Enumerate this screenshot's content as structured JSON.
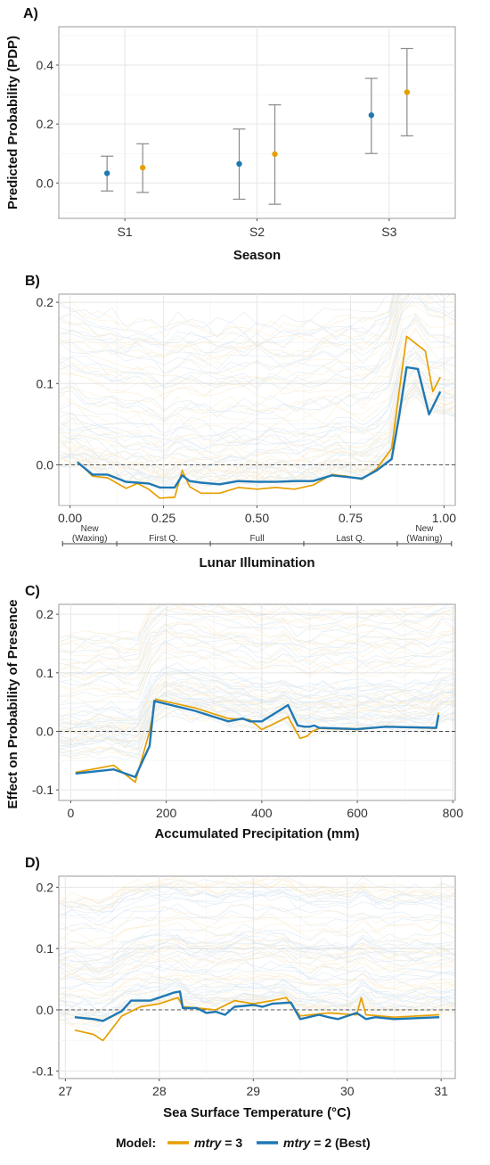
{
  "colors": {
    "model_a": "#E69F00",
    "model_b": "#1F78B4",
    "errorbar": "#8a8a8a",
    "ice_a": "#F2C572",
    "ice_b": "#8EB8D8"
  },
  "y_title_shared": "Effect on Probability of Presence",
  "legend": {
    "title": "Model:",
    "items": [
      {
        "key": "mtry3",
        "name": "mtry",
        "suffix": " = 3",
        "color": "#E69F00"
      },
      {
        "key": "mtry2",
        "name": "mtry",
        "suffix": " = 2 (Best)",
        "color": "#1F78B4"
      }
    ]
  },
  "chart_data": [
    {
      "id": "A",
      "tag": "A)",
      "type": "scatter",
      "xlabel": "Season",
      "ylabel": "Predicted Probability (PDP)",
      "categories": [
        "S1",
        "S2",
        "S3"
      ],
      "ylim": [
        -0.12,
        0.53
      ],
      "yticks": [
        0.0,
        0.2,
        0.4
      ],
      "ytick_labels": [
        "0.0",
        "0.2",
        "0.4"
      ],
      "grid": true,
      "series": [
        {
          "key": "mtry2",
          "values": [
            0.033,
            0.065,
            0.23
          ],
          "lower": [
            -0.027,
            -0.055,
            0.1
          ],
          "upper": [
            0.091,
            0.183,
            0.355
          ]
        },
        {
          "key": "mtry3",
          "values": [
            0.052,
            0.098,
            0.308
          ],
          "lower": [
            -0.032,
            -0.072,
            0.16
          ],
          "upper": [
            0.133,
            0.265,
            0.456
          ]
        }
      ]
    },
    {
      "id": "B",
      "tag": "B)",
      "type": "line",
      "xlabel": "Lunar Illumination",
      "xlim": [
        -0.03,
        1.03
      ],
      "ylim": [
        -0.05,
        0.21
      ],
      "xticks": [
        0.0,
        0.25,
        0.5,
        0.75,
        1.0
      ],
      "xtick_labels": [
        "0.00",
        "0.25",
        "0.50",
        "0.75",
        "1.00"
      ],
      "yticks": [
        0.0,
        0.1,
        0.2
      ],
      "ytick_labels": [
        "0.0",
        "0.1",
        "0.2"
      ],
      "phases": [
        {
          "label": [
            "New",
            "(Waxing)"
          ],
          "from": -0.02,
          "to": 0.125
        },
        {
          "label": [
            "First Q."
          ],
          "from": 0.125,
          "to": 0.375
        },
        {
          "label": [
            "Full"
          ],
          "from": 0.375,
          "to": 0.625
        },
        {
          "label": [
            "Last Q."
          ],
          "from": 0.625,
          "to": 0.875
        },
        {
          "label": [
            "New",
            "(Waning)"
          ],
          "from": 0.875,
          "to": 1.02
        }
      ],
      "series": [
        {
          "key": "mtry3",
          "x": [
            0.02,
            0.06,
            0.1,
            0.15,
            0.18,
            0.21,
            0.24,
            0.28,
            0.3,
            0.32,
            0.35,
            0.4,
            0.45,
            0.5,
            0.55,
            0.6,
            0.65,
            0.7,
            0.74,
            0.78,
            0.82,
            0.86,
            0.88,
            0.9,
            0.95,
            0.97,
            0.99
          ],
          "y": [
            0.004,
            -0.014,
            -0.016,
            -0.029,
            -0.023,
            -0.03,
            -0.041,
            -0.04,
            -0.007,
            -0.027,
            -0.035,
            -0.035,
            -0.028,
            -0.03,
            -0.028,
            -0.03,
            -0.025,
            -0.012,
            -0.014,
            -0.018,
            -0.005,
            0.02,
            0.09,
            0.158,
            0.14,
            0.09,
            0.108
          ]
        },
        {
          "key": "mtry2",
          "x": [
            0.02,
            0.06,
            0.1,
            0.15,
            0.18,
            0.21,
            0.24,
            0.28,
            0.3,
            0.32,
            0.35,
            0.4,
            0.45,
            0.5,
            0.55,
            0.6,
            0.65,
            0.7,
            0.74,
            0.78,
            0.82,
            0.86,
            0.88,
            0.9,
            0.93,
            0.96,
            0.99
          ],
          "y": [
            0.003,
            -0.012,
            -0.012,
            -0.021,
            -0.022,
            -0.023,
            -0.028,
            -0.028,
            -0.013,
            -0.02,
            -0.022,
            -0.024,
            -0.02,
            -0.021,
            -0.021,
            -0.02,
            -0.02,
            -0.013,
            -0.015,
            -0.017,
            -0.007,
            0.007,
            0.06,
            0.12,
            0.118,
            0.062,
            0.09
          ]
        }
      ]
    },
    {
      "id": "C",
      "tag": "C)",
      "type": "line",
      "xlabel": "Accumulated Precipitation (mm)",
      "xlim": [
        -25,
        805
      ],
      "ylim": [
        -0.118,
        0.217
      ],
      "xticks": [
        0,
        200,
        400,
        600,
        800
      ],
      "xtick_labels": [
        "0",
        "200",
        "400",
        "600",
        "800"
      ],
      "yticks": [
        -0.1,
        0.0,
        0.1,
        0.2
      ],
      "ytick_labels": [
        "-0.1",
        "0.0",
        "0.1",
        "0.2"
      ],
      "series": [
        {
          "key": "mtry3",
          "x": [
            10,
            90,
            135,
            165,
            178,
            260,
            330,
            375,
            400,
            455,
            480,
            495,
            505,
            520,
            600,
            660,
            765,
            770
          ],
          "y": [
            -0.07,
            -0.058,
            -0.087,
            0.0,
            0.055,
            0.04,
            0.022,
            0.02,
            0.003,
            0.025,
            -0.012,
            -0.008,
            0.0,
            0.005,
            0.003,
            0.008,
            0.005,
            0.032
          ]
        },
        {
          "key": "mtry2",
          "x": [
            10,
            90,
            135,
            165,
            175,
            260,
            330,
            360,
            375,
            400,
            455,
            475,
            490,
            500,
            510,
            520,
            600,
            660,
            765,
            770
          ],
          "y": [
            -0.072,
            -0.065,
            -0.078,
            -0.025,
            0.052,
            0.035,
            0.017,
            0.022,
            0.017,
            0.017,
            0.045,
            0.01,
            0.008,
            0.008,
            0.01,
            0.006,
            0.004,
            0.008,
            0.006,
            0.028
          ]
        }
      ]
    },
    {
      "id": "D",
      "tag": "D)",
      "type": "line",
      "xlabel": "Sea Surface Temperature (°C)",
      "xlim": [
        26.93,
        31.15
      ],
      "ylim": [
        -0.112,
        0.218
      ],
      "xticks": [
        27,
        28,
        29,
        30,
        31
      ],
      "xtick_labels": [
        "27",
        "28",
        "29",
        "30",
        "31"
      ],
      "yticks": [
        -0.1,
        0.0,
        0.1,
        0.2
      ],
      "ytick_labels": [
        "-0.1",
        "0.0",
        "0.1",
        "0.2"
      ],
      "series": [
        {
          "key": "mtry3",
          "x": [
            27.1,
            27.3,
            27.4,
            27.6,
            27.8,
            28.0,
            28.2,
            28.25,
            28.4,
            28.6,
            28.8,
            29.0,
            29.2,
            29.35,
            29.5,
            29.8,
            30.1,
            30.15,
            30.2,
            30.5,
            30.98
          ],
          "y": [
            -0.033,
            -0.04,
            -0.05,
            -0.01,
            0.005,
            0.01,
            0.02,
            0.005,
            0.003,
            0.0,
            0.015,
            0.01,
            0.015,
            0.02,
            -0.01,
            -0.005,
            -0.008,
            0.02,
            -0.008,
            -0.012,
            -0.008
          ]
        },
        {
          "key": "mtry2",
          "x": [
            27.1,
            27.3,
            27.4,
            27.6,
            27.7,
            27.9,
            28.0,
            28.15,
            28.22,
            28.25,
            28.4,
            28.5,
            28.6,
            28.7,
            28.8,
            29.0,
            29.1,
            29.2,
            29.4,
            29.5,
            29.7,
            29.8,
            29.9,
            30.1,
            30.2,
            30.3,
            30.5,
            30.98
          ],
          "y": [
            -0.012,
            -0.015,
            -0.018,
            -0.002,
            0.015,
            0.015,
            0.02,
            0.028,
            0.03,
            0.003,
            0.003,
            -0.005,
            -0.003,
            -0.008,
            0.005,
            0.008,
            0.005,
            0.01,
            0.012,
            -0.015,
            -0.008,
            -0.012,
            -0.015,
            -0.005,
            -0.015,
            -0.012,
            -0.015,
            -0.012
          ]
        }
      ]
    }
  ]
}
